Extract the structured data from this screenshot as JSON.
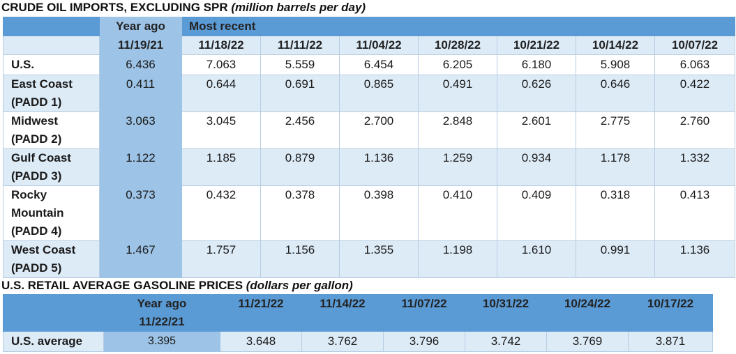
{
  "crude": {
    "title_main": "CRUDE OIL IMPORTS, EXCLUDING SPR",
    "title_unit": "(million barrels per day)",
    "year_ago_label": "Year ago",
    "most_recent_label": "Most recent",
    "year_ago_date": "11/19/21",
    "dates": [
      "11/18/22",
      "11/11/22",
      "11/04/22",
      "10/28/22",
      "10/21/22",
      "10/14/22",
      "10/07/22"
    ],
    "rows": [
      {
        "label": [
          "U.S."
        ],
        "year_ago": "6.436",
        "values": [
          "7.063",
          "5.559",
          "6.454",
          "6.205",
          "6.180",
          "5.908",
          "6.063"
        ]
      },
      {
        "label": [
          "East Coast",
          "(PADD 1)"
        ],
        "year_ago": "0.411",
        "values": [
          "0.644",
          "0.691",
          "0.865",
          "0.491",
          "0.626",
          "0.646",
          "0.422"
        ]
      },
      {
        "label": [
          "Midwest",
          "(PADD 2)"
        ],
        "year_ago": "3.063",
        "values": [
          "3.045",
          "2.456",
          "2.700",
          "2.848",
          "2.601",
          "2.775",
          "2.760"
        ]
      },
      {
        "label": [
          "Gulf Coast",
          "(PADD 3)"
        ],
        "year_ago": "1.122",
        "values": [
          "1.185",
          "0.879",
          "1.136",
          "1.259",
          "0.934",
          "1.178",
          "1.332"
        ]
      },
      {
        "label": [
          "Rocky",
          "Mountain",
          "(PADD 4)"
        ],
        "year_ago": "0.373",
        "values": [
          "0.432",
          "0.378",
          "0.398",
          "0.410",
          "0.409",
          "0.318",
          "0.413"
        ]
      },
      {
        "label": [
          "West Coast",
          "(PADD 5)"
        ],
        "year_ago": "1.467",
        "values": [
          "1.757",
          "1.156",
          "1.355",
          "1.198",
          "1.610",
          "0.991",
          "1.136"
        ]
      }
    ]
  },
  "gasoline": {
    "title_main": "U.S. RETAIL AVERAGE GASOLINE PRICES",
    "title_unit": "(dollars per gallon)",
    "year_ago_label": "Year ago",
    "year_ago_date": "11/22/21",
    "dates": [
      "11/21/22",
      "11/14/22",
      "11/07/22",
      "10/31/22",
      "10/24/22",
      "10/17/22"
    ],
    "row_label": "U.S. average",
    "year_ago_value": "3.395",
    "values": [
      "3.648",
      "3.762",
      "3.796",
      "3.742",
      "3.769",
      "3.871"
    ]
  }
}
